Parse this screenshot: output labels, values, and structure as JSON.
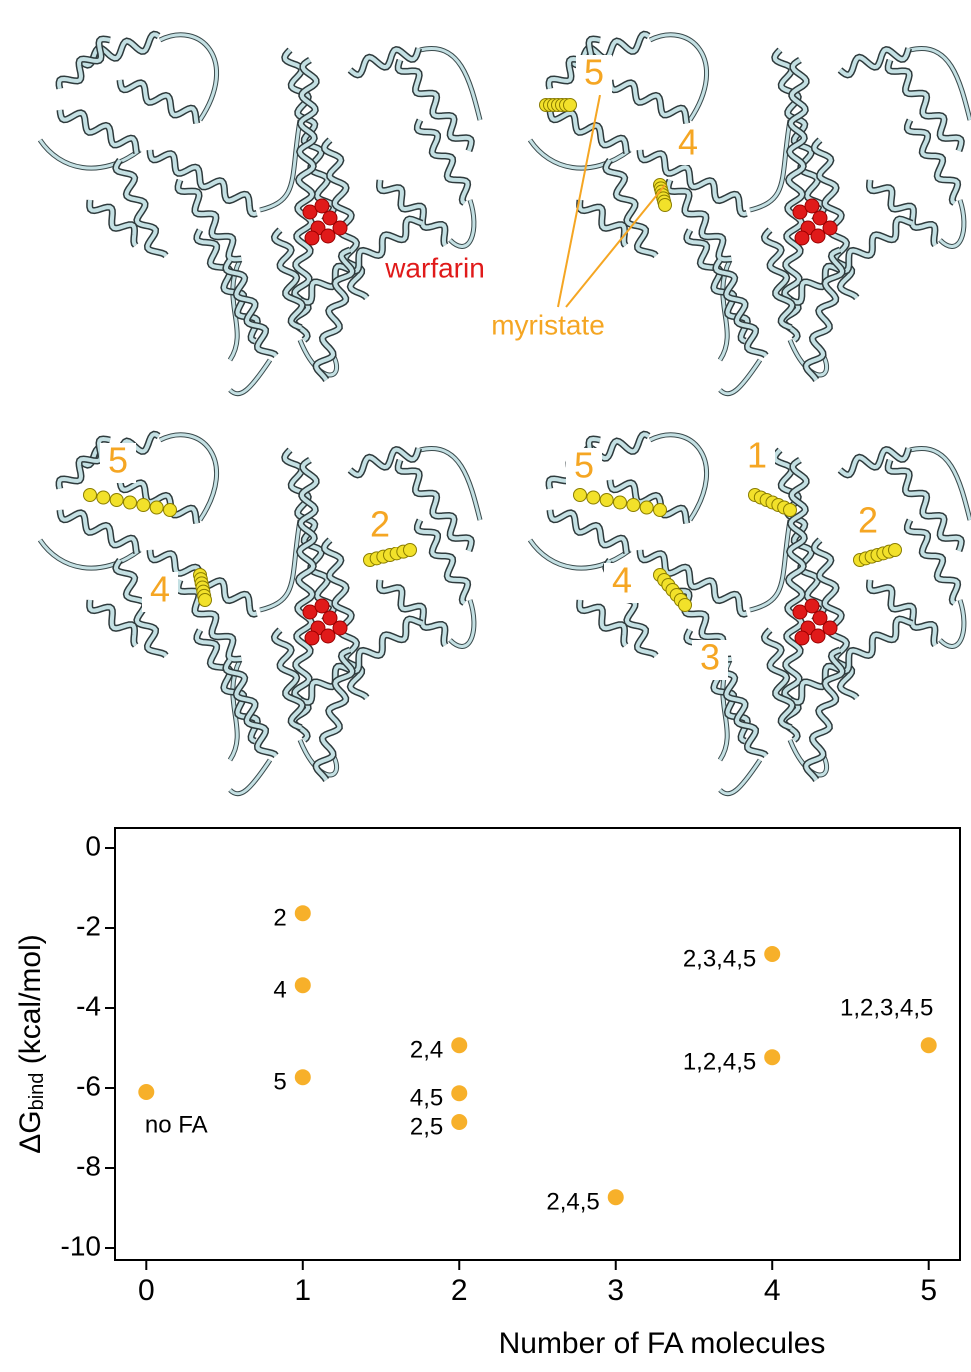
{
  "panels": [
    {
      "labels": [
        "warfarin"
      ]
    },
    {
      "labels": [
        "5",
        "4",
        "myristate"
      ]
    },
    {
      "labels": [
        "5",
        "4",
        "2"
      ]
    },
    {
      "labels": [
        "5",
        "1",
        "2",
        "4",
        "3"
      ]
    }
  ],
  "chart_data": {
    "type": "scatter",
    "y_label": [
      "ΔG",
      "bind",
      " (kcal/mol)"
    ],
    "x_label": "Number of FA molecules",
    "xlim": [
      -0.2,
      5.2
    ],
    "xticks": [
      0,
      1,
      2,
      3,
      4,
      5
    ],
    "ylim": [
      -10.3,
      0.5
    ],
    "yticks": [
      0,
      -2,
      -4,
      -6,
      -8,
      -10
    ],
    "series": [
      {
        "color": "#f7b02a",
        "x": [
          0,
          1,
          1,
          1,
          2,
          2,
          2,
          3,
          4,
          4,
          5
        ],
        "values": [
          -6.1,
          -1.63,
          -3.43,
          -5.73,
          -4.93,
          -6.13,
          -6.85,
          -8.73,
          -2.65,
          -5.23,
          -4.93
        ],
        "labels": [
          "no FA",
          "2",
          "4",
          "5",
          "2,4",
          "4,5",
          "2,5",
          "2,4,5",
          "2,3,4,5",
          "1,2,4,5",
          "1,2,3,4,5"
        ]
      }
    ]
  }
}
